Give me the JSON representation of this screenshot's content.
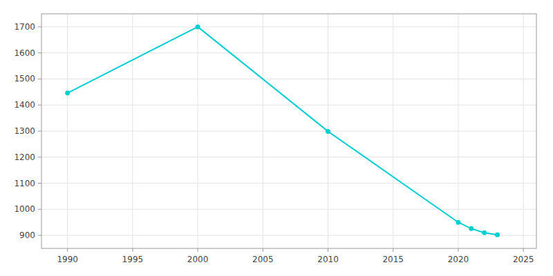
{
  "chart_data": {
    "type": "line",
    "x": [
      1990,
      2000,
      2010,
      2020,
      2021,
      2022,
      2023
    ],
    "values": [
      1446,
      1700,
      1299,
      950,
      926,
      910,
      902
    ],
    "color": "#00CED1",
    "marker": "circle",
    "xlim": [
      1988,
      2026
    ],
    "ylim": [
      850,
      1750
    ],
    "xticks": [
      1990,
      1995,
      2000,
      2005,
      2010,
      2015,
      2020,
      2025
    ],
    "yticks": [
      900,
      1000,
      1100,
      1200,
      1300,
      1400,
      1500,
      1600,
      1700
    ],
    "grid": true
  }
}
